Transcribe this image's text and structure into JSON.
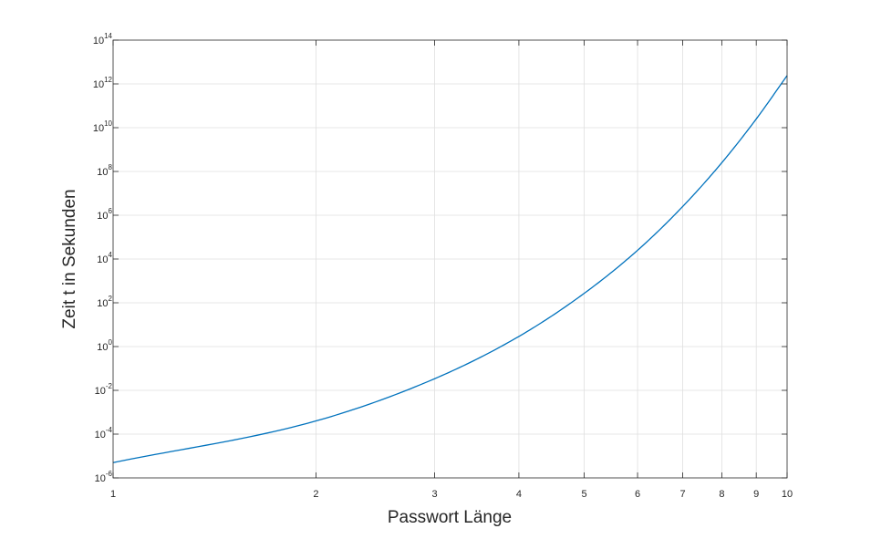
{
  "chart_data": {
    "type": "line",
    "title": "",
    "xlabel": "Passwort Länge",
    "ylabel": "Zeit t in Sekunden",
    "xscale": "log",
    "yscale": "log",
    "xlim": [
      1,
      10
    ],
    "ylim": [
      1e-06,
      100000000000000.0
    ],
    "grid": true,
    "x_ticks": [
      1,
      2,
      3,
      4,
      5,
      6,
      7,
      8,
      9,
      10
    ],
    "x_tick_labels": [
      "1",
      "2",
      "3",
      "4",
      "5",
      "6",
      "7",
      "8",
      "9",
      "10"
    ],
    "y_ticks": [
      {
        "value": 1e-06,
        "base": "10",
        "exp": "-6"
      },
      {
        "value": 0.0001,
        "base": "10",
        "exp": "-4"
      },
      {
        "value": 0.01,
        "base": "10",
        "exp": "-2"
      },
      {
        "value": 1,
        "base": "10",
        "exp": "0"
      },
      {
        "value": 100.0,
        "base": "10",
        "exp": "2"
      },
      {
        "value": 10000.0,
        "base": "10",
        "exp": "4"
      },
      {
        "value": 1000000.0,
        "base": "10",
        "exp": "6"
      },
      {
        "value": 100000000.0,
        "base": "10",
        "exp": "8"
      },
      {
        "value": 10000000000.0,
        "base": "10",
        "exp": "10"
      },
      {
        "value": 1000000000000.0,
        "base": "10",
        "exp": "12"
      },
      {
        "value": 100000000000000.0,
        "base": "10",
        "exp": "14"
      }
    ],
    "series": [
      {
        "color": "#0072BD",
        "x": [
          1,
          2,
          3,
          4,
          5,
          6,
          7,
          8,
          9,
          10
        ],
        "y": [
          5e-06,
          0.0004,
          0.034,
          2.9,
          270,
          25000,
          2500000,
          250000000,
          25000000000,
          2400000000000
        ]
      }
    ]
  }
}
